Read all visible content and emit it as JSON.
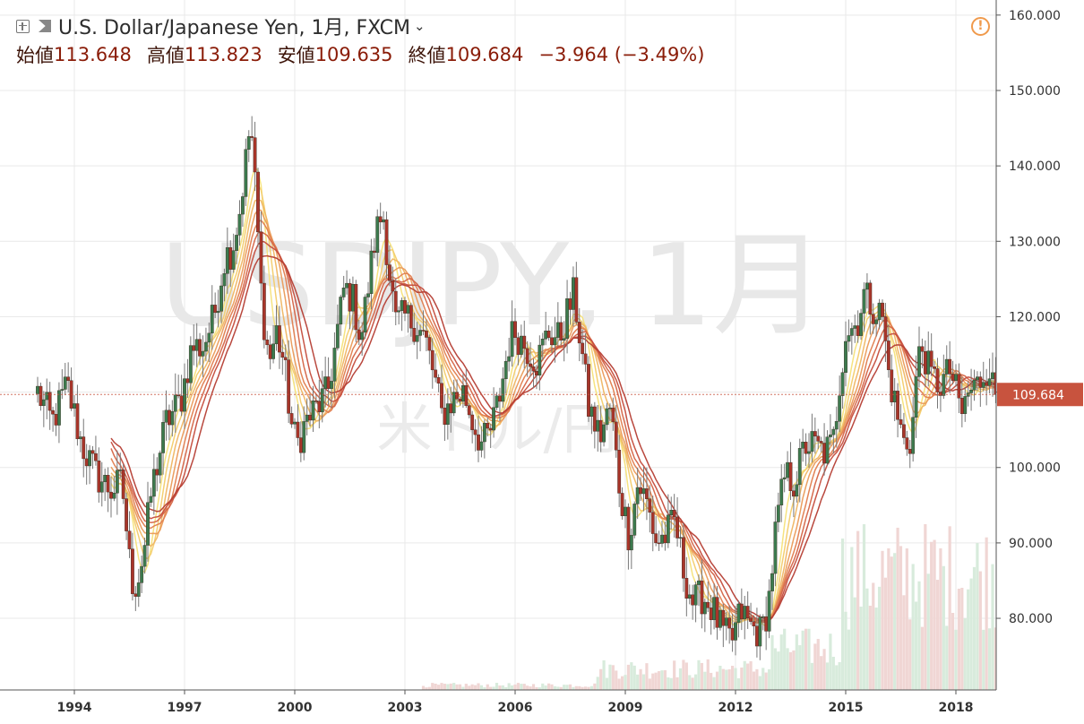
{
  "header": {
    "symbol_title": "U.S. Dollar/Japanese Yen, 1月, FXCM",
    "open_label": "始値",
    "open_value": "113.648",
    "high_label": "高値",
    "high_value": "113.823",
    "low_label": "安値",
    "low_value": "109.635",
    "close_label": "終値",
    "close_value": "109.684",
    "change": "−3.964 (−3.49%)"
  },
  "watermark": {
    "main": "USDJPY, 1月",
    "sub": "米ドル/円"
  },
  "colors": {
    "up": "#3c7a4e",
    "down": "#a8352a",
    "wick": "#777777",
    "price_tag": "#c8533e",
    "warning": "#f09a4c",
    "volume_up": "#d8ebdc",
    "volume_down": "#f0d6d4"
  },
  "icons": {
    "expand": "plus-square-icon",
    "flag": "flag-icon",
    "menu": "chevron-down-icon",
    "warning": "warning-icon"
  },
  "chart_data": {
    "type": "candlestick",
    "interval": "1 month",
    "y_axis": {
      "position": "right",
      "ylim": [
        70.5,
        162
      ],
      "ticks": [
        "160.000",
        "150.000",
        "140.000",
        "130.000",
        "120.000",
        "110.000",
        "100.000",
        "90.000",
        "80.000"
      ]
    },
    "x_axis": {
      "ticks": [
        "1994",
        "1997",
        "2000",
        "2003",
        "2006",
        "2009",
        "2012",
        "2015",
        "2018"
      ]
    },
    "last_price": "109.684",
    "grid": true,
    "indicators": "ribbon of 8 moving averages (yellow to dark red)",
    "close_path": [
      [
        1993.0,
        110.0
      ],
      [
        1993.4,
        106.0
      ],
      [
        1993.8,
        111.0
      ],
      [
        1994.2,
        103.0
      ],
      [
        1994.6,
        99.0
      ],
      [
        1995.0,
        97.0
      ],
      [
        1995.3,
        98.0
      ],
      [
        1995.55,
        85.0
      ],
      [
        1995.7,
        84.5
      ],
      [
        1995.9,
        89.0
      ],
      [
        1996.1,
        97.0
      ],
      [
        1996.5,
        106.0
      ],
      [
        1996.9,
        109.0
      ],
      [
        1997.2,
        116.0
      ],
      [
        1997.5,
        116.0
      ],
      [
        1997.8,
        120.0
      ],
      [
        1998.1,
        128.0
      ],
      [
        1998.3,
        129.0
      ],
      [
        1998.5,
        134.0
      ],
      [
        1998.65,
        140.0
      ],
      [
        1998.8,
        146.0
      ],
      [
        1998.95,
        135.0
      ],
      [
        1999.1,
        122.0
      ],
      [
        1999.3,
        114.0
      ],
      [
        1999.5,
        118.0
      ],
      [
        1999.7,
        114.0
      ],
      [
        1999.9,
        106.0
      ],
      [
        2000.05,
        103.0
      ],
      [
        2000.3,
        106.0
      ],
      [
        2000.6,
        108.0
      ],
      [
        2000.9,
        110.0
      ],
      [
        2001.1,
        116.0
      ],
      [
        2001.35,
        124.0
      ],
      [
        2001.6,
        122.0
      ],
      [
        2001.8,
        117.0
      ],
      [
        2002.0,
        124.0
      ],
      [
        2002.2,
        131.0
      ],
      [
        2002.4,
        134.0
      ],
      [
        2002.55,
        127.0
      ],
      [
        2002.75,
        119.0
      ],
      [
        2003.0,
        120.0
      ],
      [
        2003.3,
        119.0
      ],
      [
        2003.55,
        117.0
      ],
      [
        2003.8,
        112.0
      ],
      [
        2004.0,
        107.0
      ],
      [
        2004.3,
        109.0
      ],
      [
        2004.6,
        110.0
      ],
      [
        2004.85,
        106.0
      ],
      [
        2005.1,
        103.0
      ],
      [
        2005.35,
        105.0
      ],
      [
        2005.6,
        110.0
      ],
      [
        2005.85,
        117.0
      ],
      [
        2006.0,
        118.0
      ],
      [
        2006.3,
        116.0
      ],
      [
        2006.6,
        114.0
      ],
      [
        2006.9,
        118.0
      ],
      [
        2007.2,
        117.0
      ],
      [
        2007.45,
        121.0
      ],
      [
        2007.6,
        123.0
      ],
      [
        2007.8,
        116.0
      ],
      [
        2008.0,
        108.0
      ],
      [
        2008.3,
        104.0
      ],
      [
        2008.6,
        108.0
      ],
      [
        2008.85,
        97.0
      ],
      [
        2009.1,
        91.0
      ],
      [
        2009.35,
        98.0
      ],
      [
        2009.6,
        95.0
      ],
      [
        2009.85,
        90.0
      ],
      [
        2010.1,
        91.0
      ],
      [
        2010.35,
        93.0
      ],
      [
        2010.6,
        86.0
      ],
      [
        2010.85,
        82.0
      ],
      [
        2011.1,
        83.0
      ],
      [
        2011.4,
        81.0
      ],
      [
        2011.65,
        78.0
      ],
      [
        2011.9,
        77.0
      ],
      [
        2012.15,
        81.0
      ],
      [
        2012.4,
        79.0
      ],
      [
        2012.7,
        78.0
      ],
      [
        2012.9,
        82.0
      ],
      [
        2013.1,
        92.0
      ],
      [
        2013.35,
        99.0
      ],
      [
        2013.6,
        98.0
      ],
      [
        2013.9,
        103.0
      ],
      [
        2014.1,
        103.0
      ],
      [
        2014.4,
        102.0
      ],
      [
        2014.65,
        103.0
      ],
      [
        2014.85,
        112.0
      ],
      [
        2015.0,
        118.0
      ],
      [
        2015.3,
        119.0
      ],
      [
        2015.5,
        123.0
      ],
      [
        2015.8,
        121.0
      ],
      [
        2016.0,
        120.0
      ],
      [
        2016.15,
        113.0
      ],
      [
        2016.4,
        107.0
      ],
      [
        2016.6,
        103.0
      ],
      [
        2016.8,
        104.0
      ],
      [
        2016.95,
        114.0
      ],
      [
        2017.1,
        116.0
      ],
      [
        2017.3,
        112.0
      ],
      [
        2017.6,
        111.0
      ],
      [
        2017.85,
        113.0
      ],
      [
        2018.0,
        110.0
      ],
      [
        2018.15,
        107.0
      ],
      [
        2018.35,
        110.0
      ],
      [
        2018.6,
        111.0
      ],
      [
        2018.8,
        113.0
      ],
      [
        2018.95,
        113.6
      ],
      [
        2019.02,
        109.7
      ]
    ]
  }
}
